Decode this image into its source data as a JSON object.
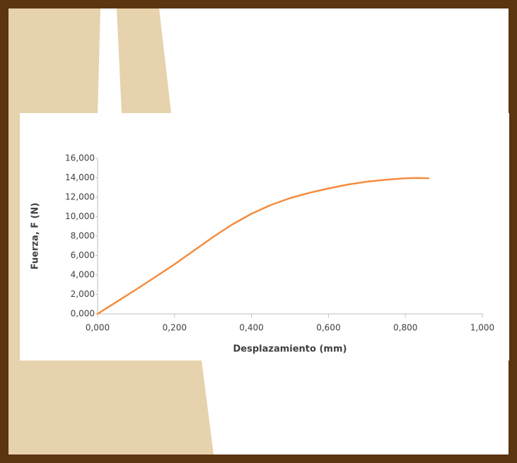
{
  "chart_data": {
    "type": "line",
    "x_label": "Desplazamiento (mm)",
    "y_label": "Fuerza, F (N)",
    "x": [
      0,
      0.05,
      0.1,
      0.15,
      0.2,
      0.25,
      0.3,
      0.35,
      0.4,
      0.45,
      0.5,
      0.55,
      0.6,
      0.65,
      0.7,
      0.75,
      0.8,
      0.83,
      0.86
    ],
    "series": [
      {
        "color": "#f58b3c",
        "values": [
          0,
          1.25,
          2.5,
          3.8,
          5.1,
          6.5,
          7.9,
          9.2,
          10.3,
          11.2,
          11.9,
          12.45,
          12.9,
          13.3,
          13.6,
          13.8,
          13.95,
          13.98,
          13.95
        ]
      }
    ],
    "xlim": [
      0,
      1
    ],
    "xticks": [
      {
        "value": 0,
        "label": "0,000"
      },
      {
        "value": 0.2,
        "label": "0,200"
      },
      {
        "value": 0.4,
        "label": "0,400"
      },
      {
        "value": 0.6,
        "label": "0,600"
      },
      {
        "value": 0.8,
        "label": "0,800"
      },
      {
        "value": 1,
        "label": "1,000"
      }
    ],
    "ylim": [
      0,
      16
    ],
    "yticks": [
      {
        "value": 0,
        "label": "0,000"
      },
      {
        "value": 2,
        "label": "2,000"
      },
      {
        "value": 4,
        "label": "4,000"
      },
      {
        "value": 6,
        "label": "6,000"
      },
      {
        "value": 8,
        "label": "8,000"
      },
      {
        "value": 10,
        "label": "10,000"
      },
      {
        "value": 12,
        "label": "12,000"
      },
      {
        "value": 14,
        "label": "14,000"
      },
      {
        "value": 16,
        "label": "16,000"
      }
    ],
    "grid": false
  }
}
